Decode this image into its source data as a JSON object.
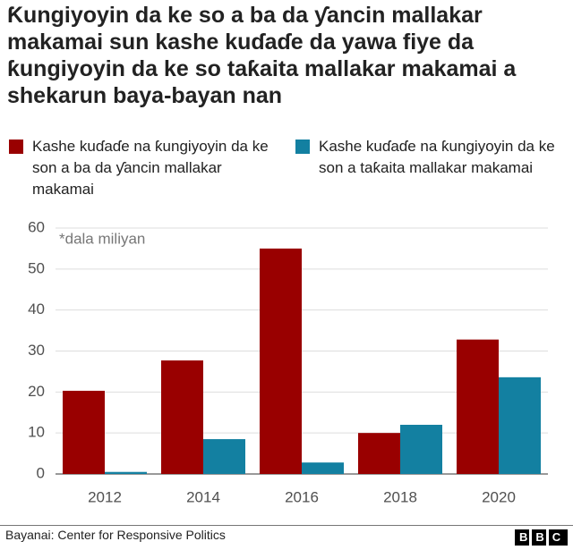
{
  "chart_data": {
    "type": "bar",
    "title": "Ƙungiyoyin da ke so a ba da ƴancin mallakar makamai sun kashe kuɗaɗe da yawa fiye da ƙungiyoyin da ke so taƙaita mallakar makamai a shekarun baya-bayan nan",
    "annotation": "*dala miliyan",
    "categories": [
      "2012",
      "2014",
      "2016",
      "2018",
      "2020"
    ],
    "series": [
      {
        "name": "Kashe kuɗaɗe na ƙungiyoyin da ke son a ba da ƴancin mallakar makamai",
        "color": "#990000",
        "values": [
          20.3,
          27.7,
          55,
          10,
          32.8
        ]
      },
      {
        "name": "Kashe kuɗaɗe na ƙungiyoyin da ke son a taƙaita mallakar makamai",
        "color": "#1380a1",
        "values": [
          0.5,
          8.5,
          2.8,
          12,
          23.6
        ]
      }
    ],
    "ylim": [
      0,
      60
    ],
    "yticks": [
      0,
      10,
      20,
      30,
      40,
      50,
      60
    ],
    "grid": true,
    "source": "Bayanai: Center for Responsive Politics",
    "logo": "BBC"
  }
}
